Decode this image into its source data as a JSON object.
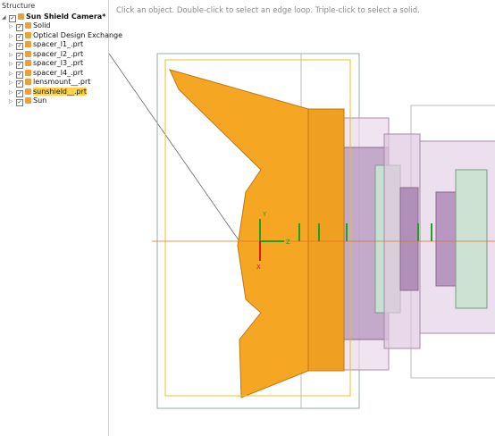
{
  "panel": {
    "title": "Structure",
    "tree": {
      "root": "Sun Shield Camera*",
      "children": [
        "Solid",
        "Optical Design Exchange",
        "spacer_l1_.prt",
        "spacer_l2_.prt",
        "spacer_l3_.prt",
        "spacer_l4_.prt",
        "lensmount__.prt",
        "sunshield__.prt",
        "Sun"
      ],
      "selected": 7
    }
  },
  "viewport": {
    "hint": "Click an object. Double-click to select an edge loop. Triple-click to select a solid.",
    "triad_labels": [
      "Y",
      "Z",
      "X"
    ]
  }
}
